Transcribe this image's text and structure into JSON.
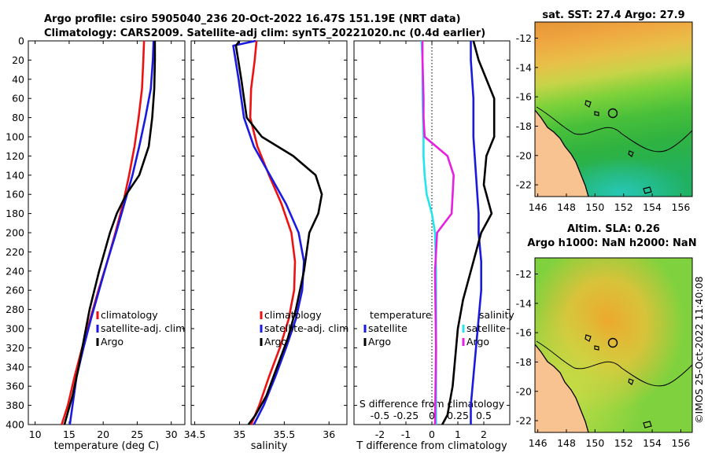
{
  "titles": {
    "line1": "Argo profile: csiro 5905040_236 20-Oct-2022 16.47S 151.19E (NRT data)",
    "line2": "Climatology: CARS2009. Satellite-adj clim: synTS_20221020.nc (0.4d earlier)",
    "sst_title": "sat. SST: 27.4 Argo: 27.9",
    "sla_title1": "Altim. SLA: 0.26",
    "sla_title2": "Argo h1000: NaN h2000: NaN",
    "watermark": "©IMOS 25-Oct-2022 11:40:08"
  },
  "colors": {
    "climatology": "#ee1111",
    "satellite": "#1a1ae0",
    "argo": "#000000",
    "temp_diff": "#22e6ec",
    "sal_diff": "#e81ee0",
    "land": "#f8c291"
  },
  "chart_data": [
    {
      "type": "line",
      "name": "temperature-profile",
      "xlabel": "temperature (deg C)",
      "ylabel": "",
      "xlim": [
        9,
        32
      ],
      "ylim": [
        0,
        400
      ],
      "x_ticks": [
        10,
        15,
        20,
        25,
        30
      ],
      "y_ticks": [
        0,
        20,
        40,
        60,
        80,
        100,
        120,
        140,
        160,
        180,
        200,
        220,
        240,
        260,
        280,
        300,
        320,
        340,
        360,
        380,
        400
      ],
      "legend": [
        "climatology",
        "satellite-adj. clim",
        "Argo"
      ],
      "series": [
        {
          "name": "climatology",
          "color": "#ee1111",
          "x": [
            26.0,
            25.9,
            25.7,
            25.2,
            24.6,
            23.8,
            22.9,
            21.8,
            20.6,
            19.3,
            18.1,
            16.9,
            15.8,
            14.8,
            13.9
          ],
          "y": [
            0,
            20,
            50,
            80,
            110,
            140,
            170,
            200,
            230,
            260,
            290,
            320,
            350,
            380,
            400
          ]
        },
        {
          "name": "satellite-adj. clim",
          "color": "#1a1ae0",
          "x": [
            27.4,
            27.3,
            27.0,
            26.2,
            25.3,
            24.3,
            23.1,
            21.9,
            20.6,
            19.4,
            18.2,
            17.1,
            16.1,
            15.5,
            15.1
          ],
          "y": [
            0,
            20,
            50,
            80,
            110,
            140,
            170,
            200,
            230,
            260,
            290,
            320,
            350,
            380,
            400
          ]
        },
        {
          "name": "Argo",
          "color": "#000000",
          "x": [
            27.6,
            27.6,
            27.5,
            27.2,
            26.7,
            25.3,
            23.4,
            22.0,
            21.0,
            19.4,
            18.0,
            17.2,
            16.4,
            15.5,
            14.7,
            14.3
          ],
          "y": [
            0,
            20,
            50,
            80,
            110,
            140,
            160,
            180,
            200,
            240,
            280,
            310,
            340,
            370,
            390,
            400
          ]
        }
      ]
    },
    {
      "type": "line",
      "name": "salinity-profile",
      "xlabel": "salinity",
      "ylabel": "",
      "xlim": [
        34.46,
        36.2
      ],
      "ylim": [
        0,
        400
      ],
      "x_ticks": [
        34.5,
        35,
        35.5,
        36
      ],
      "x_tick_labels": [
        "34.5",
        "35",
        "35.5",
        "36"
      ],
      "legend": [
        "climatology",
        "satellite-adj. clim",
        "Argo"
      ],
      "series": [
        {
          "name": "climatology",
          "color": "#ee1111",
          "x": [
            35.19,
            35.17,
            35.13,
            35.12,
            35.2,
            35.33,
            35.47,
            35.58,
            35.62,
            35.61,
            35.55,
            35.45,
            35.33,
            35.22,
            35.13
          ],
          "y": [
            0,
            20,
            50,
            80,
            110,
            140,
            170,
            200,
            230,
            260,
            290,
            320,
            350,
            380,
            400
          ]
        },
        {
          "name": "satellite-adj. clim",
          "color": "#1a1ae0",
          "x": [
            35.18,
            34.93,
            34.99,
            35.05,
            35.16,
            35.34,
            35.52,
            35.66,
            35.72,
            35.7,
            35.63,
            35.52,
            35.4,
            35.27,
            35.16
          ],
          "y": [
            0,
            5,
            40,
            80,
            110,
            140,
            170,
            200,
            230,
            260,
            290,
            320,
            350,
            380,
            400
          ]
        },
        {
          "name": "Argo",
          "color": "#000000",
          "x": [
            35.0,
            34.96,
            35.02,
            35.08,
            35.25,
            35.6,
            35.85,
            35.92,
            35.88,
            35.78,
            35.72,
            35.63,
            35.54,
            35.42,
            35.3,
            35.18,
            35.1
          ],
          "y": [
            0,
            5,
            40,
            80,
            100,
            120,
            140,
            160,
            180,
            200,
            240,
            280,
            310,
            340,
            370,
            390,
            400
          ]
        }
      ]
    },
    {
      "type": "line",
      "name": "difference-profile",
      "xlabel": "T difference from climatology",
      "x2label": "S difference from climatology",
      "xlim": [
        -3,
        3
      ],
      "ylim": [
        0,
        400
      ],
      "x_ticks": [
        -2,
        -1,
        0,
        1,
        2
      ],
      "x2_ticks": [
        -0.5,
        -0.25,
        0,
        0.25,
        0.5
      ],
      "x2_tick_labels": [
        "-0.5",
        "-0.25",
        "0",
        "0.25",
        "0.5"
      ],
      "legend_temperature_header": "temperature",
      "legend_salinity_header": "salinity",
      "legend_items": [
        "satellite",
        "Argo"
      ],
      "series": [
        {
          "name": "temperature satellite",
          "color": "#1a1ae0",
          "axis": "T",
          "x": [
            1.5,
            1.5,
            1.6,
            1.6,
            1.7,
            1.8,
            1.8,
            1.9,
            1.9,
            1.8,
            1.7,
            1.6,
            1.5,
            1.5
          ],
          "y": [
            0,
            20,
            60,
            100,
            140,
            180,
            200,
            230,
            260,
            290,
            320,
            350,
            380,
            400
          ]
        },
        {
          "name": "temperature Argo",
          "color": "#000000",
          "axis": "T",
          "x": [
            1.6,
            1.8,
            2.4,
            2.4,
            2.1,
            2.0,
            2.3,
            1.9,
            1.7,
            1.5,
            1.2,
            1.0,
            0.9,
            0.8,
            0.6,
            0.4
          ],
          "y": [
            0,
            20,
            60,
            100,
            120,
            150,
            180,
            200,
            220,
            240,
            270,
            300,
            330,
            360,
            390,
            400
          ]
        },
        {
          "name": "salinity satellite",
          "color": "#22e6ec",
          "axis": "S",
          "x": [
            -0.1,
            -0.09,
            -0.09,
            -0.08,
            -0.08,
            -0.07,
            -0.05,
            0.0,
            0.03,
            0.04,
            0.04,
            0.04,
            0.04,
            0.04
          ],
          "y": [
            0,
            20,
            60,
            100,
            120,
            140,
            160,
            180,
            200,
            240,
            280,
            320,
            360,
            400
          ]
        },
        {
          "name": "salinity Argo",
          "color": "#e81ee0",
          "axis": "S",
          "x": [
            -0.09,
            -0.09,
            -0.08,
            -0.08,
            -0.07,
            0.15,
            0.21,
            0.2,
            0.19,
            0.05,
            0.03,
            0.04,
            0.03
          ],
          "y": [
            0,
            20,
            60,
            80,
            100,
            120,
            140,
            160,
            180,
            200,
            240,
            320,
            400
          ]
        }
      ]
    },
    {
      "type": "heatmap",
      "name": "sat-sst-map",
      "title": "sat. SST: 27.4 Argo: 27.9",
      "xlim": [
        145.8,
        156.8
      ],
      "ylim": [
        -22.8,
        -10.9
      ],
      "x_ticks": [
        146,
        148,
        150,
        152,
        154,
        156
      ],
      "y_ticks": [
        -12,
        -14,
        -16,
        -18,
        -20,
        -22
      ],
      "float_position": [
        151.19,
        -16.47
      ]
    },
    {
      "type": "heatmap",
      "name": "altim-sla-map",
      "title": "Altim. SLA: 0.26",
      "subtitle": "Argo h1000: NaN h2000: NaN",
      "xlim": [
        145.8,
        156.8
      ],
      "ylim": [
        -22.8,
        -10.9
      ],
      "x_ticks": [
        146,
        148,
        150,
        152,
        154,
        156
      ],
      "y_ticks": [
        -12,
        -14,
        -16,
        -18,
        -20,
        -22
      ],
      "float_position": [
        151.19,
        -16.47
      ]
    }
  ]
}
